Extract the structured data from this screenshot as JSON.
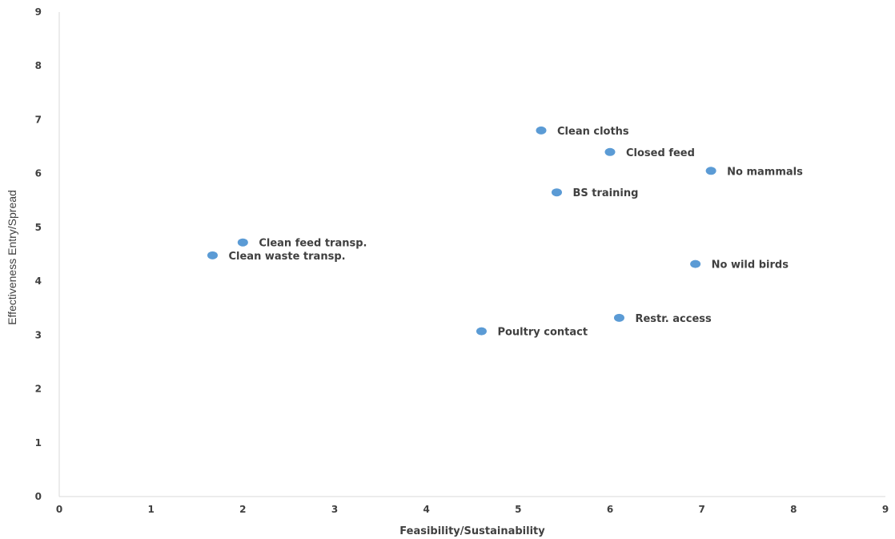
{
  "chart_data": {
    "type": "scatter",
    "title": "",
    "xlabel": "Feasibility/Sustainability",
    "ylabel": "Effectiveness Entry/Spread",
    "xlim": [
      0,
      9
    ],
    "ylim": [
      0,
      9
    ],
    "x_ticks": [
      "0",
      "1",
      "2",
      "3",
      "4",
      "5",
      "6",
      "7",
      "8",
      "9"
    ],
    "y_ticks": [
      "0",
      "1",
      "2",
      "3",
      "4",
      "5",
      "6",
      "7",
      "8",
      "9"
    ],
    "grid": false,
    "legend": "none",
    "marker_color": "#5b9bd5",
    "points": [
      {
        "label": "Clean cloths",
        "x": 5.25,
        "y": 6.8
      },
      {
        "label": "Closed feed",
        "x": 6.0,
        "y": 6.4
      },
      {
        "label": "No mammals",
        "x": 7.1,
        "y": 6.05
      },
      {
        "label": "BS training",
        "x": 5.42,
        "y": 5.65
      },
      {
        "label": "Clean feed transp.",
        "x": 2.0,
        "y": 4.72
      },
      {
        "label": "Clean waste transp.",
        "x": 1.67,
        "y": 4.48
      },
      {
        "label": "No wild birds",
        "x": 6.93,
        "y": 4.32
      },
      {
        "label": "Restr. access",
        "x": 6.1,
        "y": 3.32
      },
      {
        "label": "Poultry contact",
        "x": 4.6,
        "y": 3.07
      }
    ]
  }
}
